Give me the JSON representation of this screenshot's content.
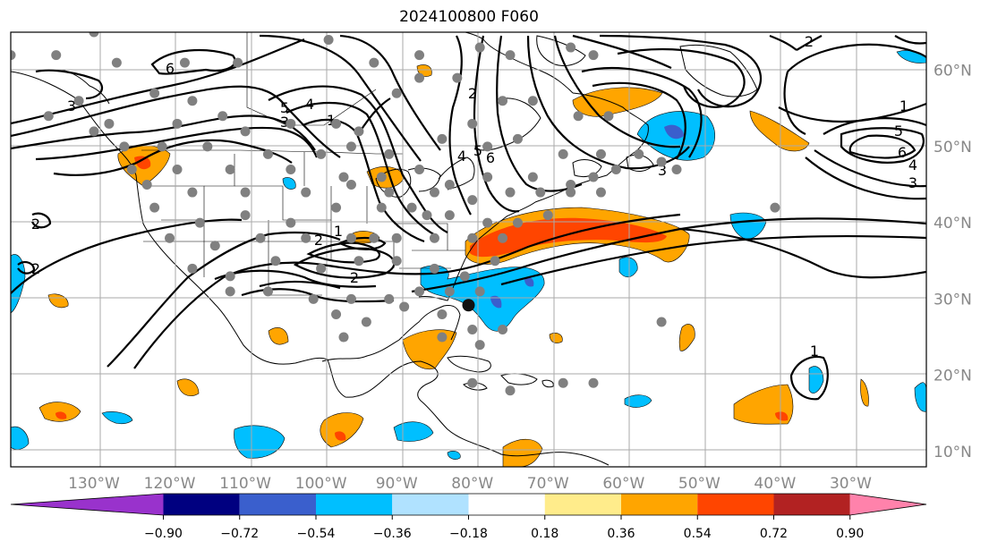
{
  "title": "2024100800 F060",
  "map": {
    "projection": "PlateCarree",
    "lon_range": [
      -141,
      -20
    ],
    "lat_range": [
      8,
      65
    ],
    "lon_ticks": [
      {
        "value": -130,
        "label": "130°W"
      },
      {
        "value": -120,
        "label": "120°W"
      },
      {
        "value": -110,
        "label": "110°W"
      },
      {
        "value": -100,
        "label": "100°W"
      },
      {
        "value": -90,
        "label": "90°W"
      },
      {
        "value": -80,
        "label": "80°W"
      },
      {
        "value": -70,
        "label": "70°W"
      },
      {
        "value": -60,
        "label": "60°W"
      },
      {
        "value": -50,
        "label": "50°W"
      },
      {
        "value": -40,
        "label": "40°W"
      },
      {
        "value": -30,
        "label": "30°W"
      }
    ],
    "lat_ticks": [
      {
        "value": 60,
        "label": "60°N"
      },
      {
        "value": 50,
        "label": "50°N"
      },
      {
        "value": 40,
        "label": "40°N"
      },
      {
        "value": 30,
        "label": "30°N"
      },
      {
        "value": 20,
        "label": "20°N"
      },
      {
        "value": 10,
        "label": "10°N"
      }
    ],
    "grid": true,
    "contour_labels": [
      "6",
      "5",
      "4",
      "3",
      "1",
      "2",
      "2",
      "1",
      "2",
      "1",
      "5",
      "6",
      "4",
      "3",
      "2",
      "3",
      "4",
      "5",
      "6",
      "3",
      "2",
      "2",
      "1"
    ],
    "hurricane_marker": {
      "lon": -80.5,
      "lat": 29.2
    }
  },
  "colorbar": {
    "tick_labels": [
      "−0.90",
      "−0.72",
      "−0.54",
      "−0.36",
      "−0.18",
      "0.18",
      "0.36",
      "0.54",
      "0.72",
      "0.90"
    ],
    "colors": [
      "#9932cc",
      "#000080",
      "#3a5fcd",
      "#00bfff",
      "#b0e2ff",
      "#ffffff",
      "#ffec8b",
      "#ffa500",
      "#ff4500",
      "#b22222",
      "#ff82ab"
    ]
  }
}
